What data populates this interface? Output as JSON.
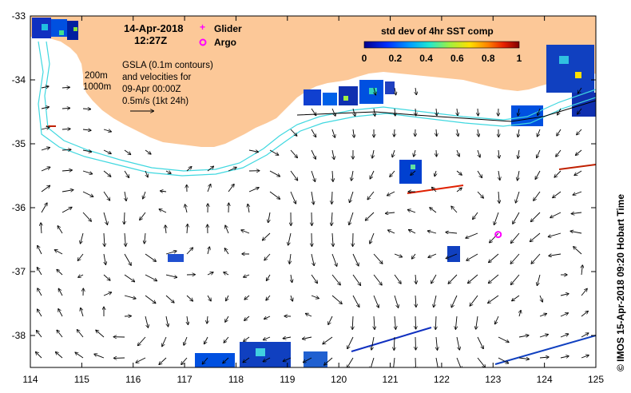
{
  "map": {
    "lon_range": [
      114,
      125
    ],
    "lat_range": [
      -38.5,
      -33
    ],
    "x_ticks": [
      "114",
      "115",
      "116",
      "117",
      "118",
      "119",
      "120",
      "121",
      "122",
      "123",
      "124",
      "125"
    ],
    "y_ticks": [
      "-33",
      "-34",
      "-35",
      "-36",
      "-37",
      "-38"
    ],
    "land_color": "#fcc898",
    "ocean_color": "#ffffff",
    "contour_color": "#40d8e0"
  },
  "header": {
    "date": "14-Apr-2018",
    "time": "12:27Z"
  },
  "legend_markers": {
    "glider_label": "Glider",
    "argo_label": "Argo",
    "glider_color": "#ff00ff",
    "argo_color": "#ff00ff"
  },
  "colorbar": {
    "title": "std dev of 4hr SST comp",
    "ticks": [
      "0",
      "0.2",
      "0.4",
      "0.6",
      "0.8",
      "1"
    ]
  },
  "contours": {
    "label_200": "200m",
    "label_1000": "1000m"
  },
  "gsla": {
    "line1": "GSLA (0.1m contours)",
    "line2": "and velocities for",
    "line3": "09-Apr 00:00Z",
    "scale": "0.5m/s (1kt 24h)"
  },
  "argo": {
    "lon": 123.1,
    "lat": -36.42
  },
  "credit": "©  IMOS 15-Apr-2018 09:20 Hobart Time"
}
